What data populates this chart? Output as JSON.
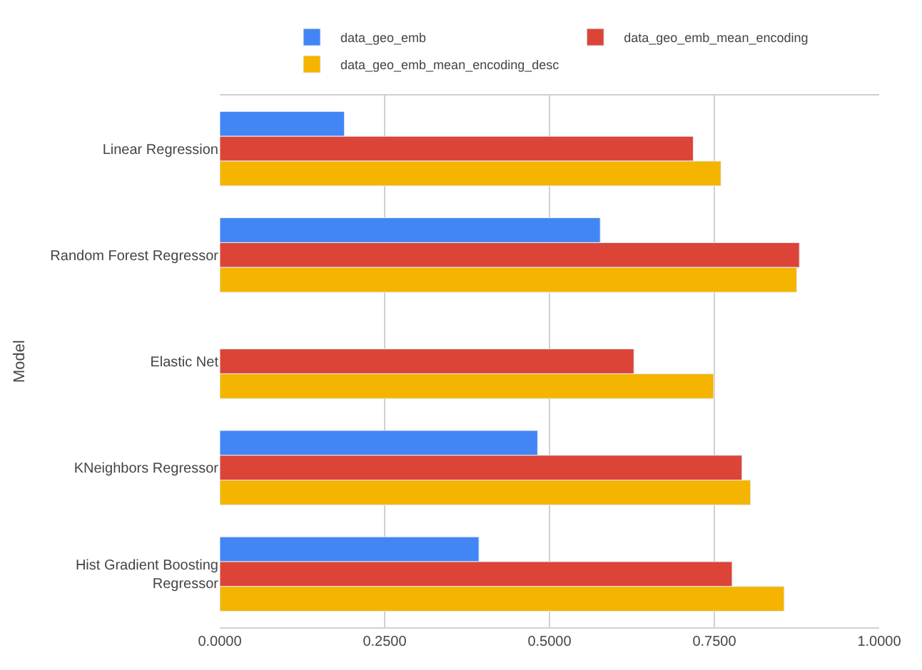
{
  "chart_data": {
    "type": "bar",
    "orientation": "horizontal",
    "ylabel": "Model",
    "categories": [
      "Linear Regression",
      "Random Forest Regressor",
      "Elastic Net",
      "KNeighbors Regressor",
      "Hist Gradient Boosting Regressor"
    ],
    "series": [
      {
        "name": "data_geo_emb",
        "color": "#4285f4",
        "values": [
          0.189,
          0.577,
          null,
          0.482,
          0.393
        ]
      },
      {
        "name": "data_geo_emb_mean_encoding",
        "color": "#db4437",
        "values": [
          0.718,
          0.879,
          0.628,
          0.792,
          0.777
        ]
      },
      {
        "name": "data_geo_emb_mean_encoding_desc",
        "color": "#f4b400",
        "values": [
          0.76,
          0.875,
          0.749,
          0.805,
          0.856
        ]
      }
    ],
    "xlim": [
      0,
      1
    ],
    "xticks": [
      {
        "value": 0,
        "label": "0.0000"
      },
      {
        "value": 0.25,
        "label": "0.2500"
      },
      {
        "value": 0.5,
        "label": "0.5000"
      },
      {
        "value": 0.75,
        "label": "0.7500"
      },
      {
        "value": 1,
        "label": "1.0000"
      }
    ],
    "grid": "x",
    "legend": "top"
  }
}
